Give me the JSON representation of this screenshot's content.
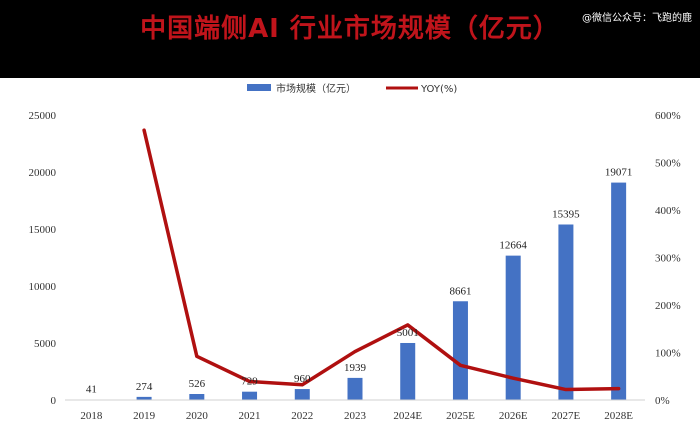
{
  "header": {
    "title": "中国端侧AI 行业市场规模（亿元）",
    "watermark": "@微信公众号：飞跑的鹿"
  },
  "colors": {
    "bar": "#4472c4",
    "line": "#b01010",
    "title": "#c0141b",
    "header_bg": "#000000"
  },
  "chart_data": {
    "type": "bar",
    "title": "中国端侧AI 行业市场规模（亿元）",
    "categories": [
      "2018",
      "2019",
      "2020",
      "2021",
      "2022",
      "2023",
      "2024E",
      "2025E",
      "2026E",
      "2027E",
      "2028E"
    ],
    "series": [
      {
        "name": "市场规模（亿元）",
        "type": "bar",
        "axis": "left",
        "values": [
          41,
          274,
          526,
          729,
          960,
          1939,
          5001,
          8661,
          12664,
          15395,
          19071
        ]
      },
      {
        "name": "YOY(%)",
        "type": "line",
        "axis": "right",
        "values": [
          null,
          568,
          92,
          39,
          32,
          102,
          158,
          73,
          46,
          22,
          24
        ]
      }
    ],
    "ylim": [
      0,
      25000
    ],
    "yticks": [
      "0",
      "5000",
      "10000",
      "15000",
      "20000",
      "25000"
    ],
    "y2lim": [
      0,
      600
    ],
    "y2ticks": [
      "0%",
      "100%",
      "200%",
      "300%",
      "400%",
      "500%",
      "600%"
    ],
    "legend": "top-center",
    "grid": false
  }
}
